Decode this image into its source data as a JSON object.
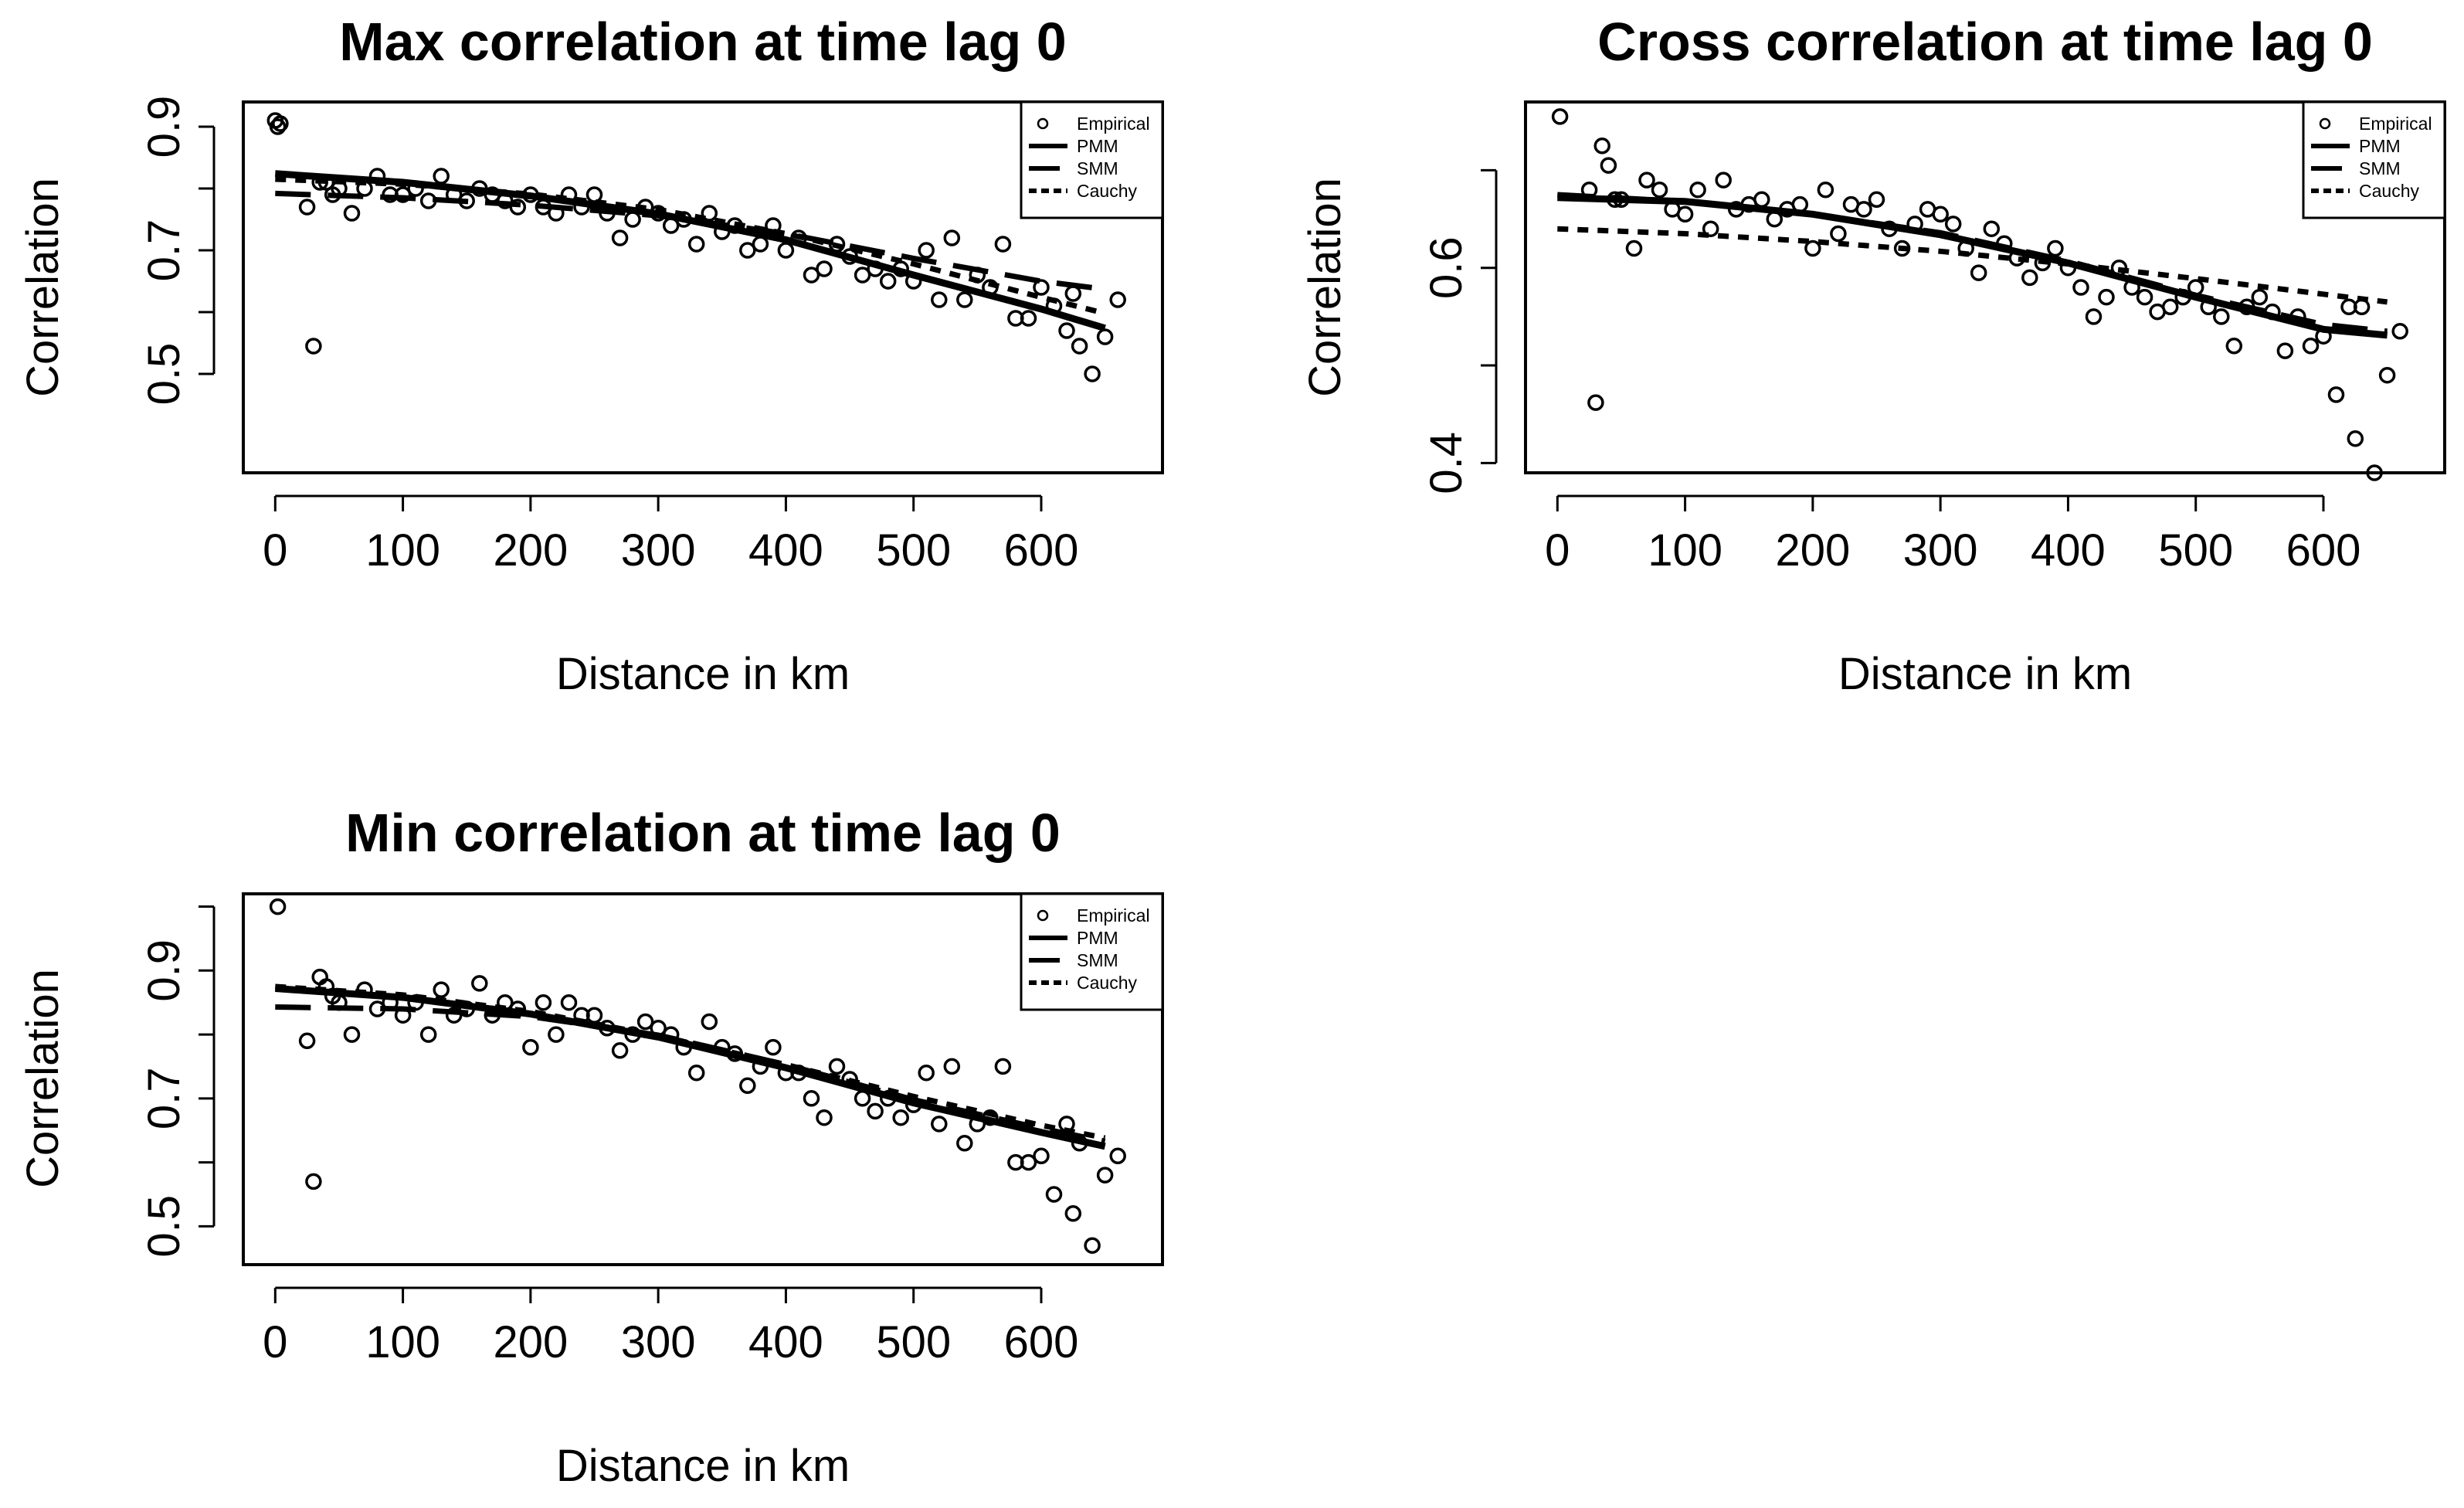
{
  "chart_data": [
    {
      "type": "scatter",
      "title": "Max correlation at time lag 0",
      "xlabel": "Distance in km",
      "ylabel": "Correlation",
      "xlim": [
        -25,
        695
      ],
      "ylim": [
        0.34,
        0.94
      ],
      "xticks": [
        0,
        100,
        200,
        300,
        400,
        500,
        600
      ],
      "xtick_labels": [
        "0",
        "100",
        "200",
        "300",
        "400",
        "500",
        "600"
      ],
      "yticks": [
        0.5,
        0.6,
        0.7,
        0.8,
        0.9
      ],
      "ytick_labels": [
        "0.5",
        "",
        "0.7",
        "",
        "0.9"
      ],
      "legend": {
        "position": "top-right",
        "entries": [
          "Empirical",
          "PMM",
          "SMM",
          "Cauchy"
        ]
      },
      "series": [
        {
          "name": "Empirical",
          "style": "points",
          "x": [
            0,
            2,
            4,
            25,
            30,
            35,
            40,
            45,
            50,
            60,
            70,
            80,
            90,
            100,
            110,
            120,
            130,
            140,
            150,
            160,
            170,
            180,
            190,
            200,
            210,
            220,
            230,
            240,
            250,
            260,
            270,
            280,
            290,
            300,
            310,
            320,
            330,
            340,
            350,
            360,
            370,
            380,
            390,
            400,
            410,
            420,
            430,
            440,
            450,
            460,
            470,
            480,
            490,
            500,
            510,
            520,
            530,
            540,
            550,
            560,
            570,
            580,
            590,
            600,
            610,
            620,
            625,
            630,
            640,
            650,
            660
          ],
          "y": [
            0.91,
            0.9,
            0.905,
            0.77,
            0.545,
            0.81,
            0.81,
            0.79,
            0.8,
            0.76,
            0.8,
            0.82,
            0.79,
            0.79,
            0.8,
            0.78,
            0.82,
            0.79,
            0.78,
            0.8,
            0.79,
            0.78,
            0.77,
            0.79,
            0.77,
            0.76,
            0.79,
            0.77,
            0.79,
            0.76,
            0.72,
            0.75,
            0.77,
            0.76,
            0.74,
            0.75,
            0.71,
            0.76,
            0.73,
            0.74,
            0.7,
            0.71,
            0.74,
            0.7,
            0.72,
            0.66,
            0.67,
            0.71,
            0.69,
            0.66,
            0.67,
            0.65,
            0.67,
            0.65,
            0.7,
            0.62,
            0.72,
            0.62,
            0.66,
            0.64,
            0.71,
            0.59,
            0.59,
            0.64,
            0.61,
            0.57,
            0.63,
            0.545,
            0.5,
            0.56,
            0.62
          ]
        },
        {
          "name": "PMM",
          "style": "solid",
          "x": [
            0,
            100,
            200,
            300,
            400,
            500,
            600,
            650
          ],
          "y": [
            0.824,
            0.81,
            0.788,
            0.759,
            0.717,
            0.66,
            0.605,
            0.574
          ]
        },
        {
          "name": "SMM",
          "style": "longdash",
          "x": [
            0,
            100,
            200,
            300,
            400,
            500,
            600,
            650
          ],
          "y": [
            0.792,
            0.785,
            0.773,
            0.756,
            0.727,
            0.687,
            0.65,
            0.637
          ]
        },
        {
          "name": "Cauchy",
          "style": "dashed",
          "x": [
            0,
            100,
            200,
            300,
            400,
            500,
            600,
            650
          ],
          "y": [
            0.815,
            0.807,
            0.791,
            0.766,
            0.727,
            0.678,
            0.624,
            0.598
          ]
        }
      ]
    },
    {
      "type": "scatter",
      "title": "Cross correlation at time lag 0",
      "xlabel": "Distance in km",
      "ylabel": "Correlation",
      "xlim": [
        -25,
        695
      ],
      "ylim": [
        0.39,
        0.77
      ],
      "xticks": [
        0,
        100,
        200,
        300,
        400,
        500,
        600
      ],
      "xtick_labels": [
        "0",
        "100",
        "200",
        "300",
        "400",
        "500",
        "600"
      ],
      "yticks": [
        0.4,
        0.5,
        0.6,
        0.7
      ],
      "ytick_labels": [
        "0.4",
        "",
        "0.6",
        ""
      ],
      "legend": {
        "position": "top-right",
        "entries": [
          "Empirical",
          "PMM",
          "SMM",
          "Cauchy"
        ]
      },
      "series": [
        {
          "name": "Empirical",
          "style": "points",
          "x": [
            2,
            25,
            30,
            35,
            40,
            45,
            50,
            60,
            70,
            80,
            90,
            100,
            110,
            120,
            130,
            140,
            150,
            160,
            170,
            180,
            190,
            200,
            210,
            220,
            230,
            240,
            250,
            260,
            270,
            280,
            290,
            300,
            310,
            320,
            330,
            340,
            350,
            360,
            370,
            380,
            390,
            400,
            410,
            420,
            430,
            440,
            450,
            460,
            470,
            480,
            490,
            500,
            510,
            520,
            530,
            540,
            550,
            560,
            570,
            580,
            590,
            600,
            610,
            620,
            625,
            630,
            640,
            650,
            660
          ],
          "y": [
            0.755,
            0.68,
            0.462,
            0.725,
            0.705,
            0.67,
            0.67,
            0.62,
            0.69,
            0.68,
            0.66,
            0.655,
            0.68,
            0.64,
            0.69,
            0.66,
            0.665,
            0.67,
            0.65,
            0.66,
            0.665,
            0.62,
            0.68,
            0.635,
            0.665,
            0.66,
            0.67,
            0.64,
            0.62,
            0.645,
            0.66,
            0.655,
            0.645,
            0.62,
            0.595,
            0.64,
            0.625,
            0.61,
            0.59,
            0.605,
            0.62,
            0.6,
            0.58,
            0.55,
            0.57,
            0.6,
            0.58,
            0.57,
            0.555,
            0.56,
            0.57,
            0.58,
            0.56,
            0.55,
            0.52,
            0.56,
            0.57,
            0.555,
            0.515,
            0.55,
            0.52,
            0.53,
            0.47,
            0.56,
            0.425,
            0.56,
            0.39,
            0.49,
            0.535
          ]
        },
        {
          "name": "PMM",
          "style": "solid",
          "x": [
            0,
            100,
            200,
            300,
            400,
            500,
            600,
            650
          ],
          "y": [
            0.672,
            0.668,
            0.655,
            0.634,
            0.605,
            0.57,
            0.537,
            0.531
          ]
        },
        {
          "name": "SMM",
          "style": "longdash",
          "x": [
            0,
            100,
            200,
            300,
            400,
            500,
            600,
            650
          ],
          "y": [
            0.675,
            0.668,
            0.655,
            0.636,
            0.607,
            0.572,
            0.542,
            0.535
          ]
        },
        {
          "name": "Cauchy",
          "style": "dashed",
          "x": [
            0,
            100,
            200,
            300,
            400,
            500,
            600,
            650
          ],
          "y": [
            0.64,
            0.635,
            0.627,
            0.617,
            0.604,
            0.589,
            0.573,
            0.565
          ]
        }
      ]
    },
    {
      "type": "scatter",
      "title": "Min correlation at time lag 0",
      "xlabel": "Distance in km",
      "ylabel": "Correlation",
      "xlim": [
        -25,
        695
      ],
      "ylim": [
        0.44,
        1.02
      ],
      "xticks": [
        0,
        100,
        200,
        300,
        400,
        500,
        600
      ],
      "xtick_labels": [
        "0",
        "100",
        "200",
        "300",
        "400",
        "500",
        "600"
      ],
      "yticks": [
        0.5,
        0.6,
        0.7,
        0.8,
        0.9,
        1.0
      ],
      "ytick_labels": [
        "0.5",
        "",
        "0.7",
        "",
        "0.9",
        ""
      ],
      "legend": {
        "position": "top-right",
        "entries": [
          "Empirical",
          "PMM",
          "SMM",
          "Cauchy"
        ]
      },
      "series": [
        {
          "name": "Empirical",
          "style": "points",
          "x": [
            2,
            25,
            30,
            35,
            40,
            45,
            50,
            60,
            70,
            80,
            90,
            100,
            110,
            120,
            130,
            140,
            150,
            160,
            170,
            180,
            190,
            200,
            210,
            220,
            230,
            240,
            250,
            260,
            270,
            280,
            290,
            300,
            310,
            320,
            330,
            340,
            350,
            360,
            370,
            380,
            390,
            400,
            410,
            420,
            430,
            440,
            450,
            460,
            470,
            480,
            490,
            500,
            510,
            520,
            530,
            540,
            550,
            560,
            570,
            580,
            590,
            600,
            610,
            620,
            625,
            630,
            640,
            650,
            660
          ],
          "y": [
            1.0,
            0.79,
            0.57,
            0.89,
            0.875,
            0.86,
            0.85,
            0.8,
            0.87,
            0.84,
            0.85,
            0.83,
            0.85,
            0.8,
            0.87,
            0.83,
            0.84,
            0.88,
            0.83,
            0.85,
            0.84,
            0.78,
            0.85,
            0.8,
            0.85,
            0.83,
            0.83,
            0.81,
            0.775,
            0.8,
            0.82,
            0.81,
            0.8,
            0.78,
            0.74,
            0.82,
            0.78,
            0.77,
            0.72,
            0.75,
            0.78,
            0.74,
            0.74,
            0.7,
            0.67,
            0.75,
            0.73,
            0.7,
            0.68,
            0.7,
            0.67,
            0.69,
            0.74,
            0.66,
            0.75,
            0.63,
            0.66,
            0.67,
            0.75,
            0.6,
            0.6,
            0.61,
            0.55,
            0.66,
            0.52,
            0.63,
            0.47,
            0.58,
            0.61
          ]
        },
        {
          "name": "PMM",
          "style": "solid",
          "x": [
            0,
            100,
            200,
            300,
            400,
            500,
            600,
            650
          ],
          "y": [
            0.872,
            0.858,
            0.832,
            0.796,
            0.748,
            0.693,
            0.647,
            0.625
          ]
        },
        {
          "name": "SMM",
          "style": "longdash",
          "x": [
            0,
            100,
            200,
            300,
            400,
            500,
            600,
            650
          ],
          "y": [
            0.843,
            0.84,
            0.828,
            0.799,
            0.753,
            0.698,
            0.653,
            0.633
          ]
        },
        {
          "name": "Cauchy",
          "style": "dashed",
          "x": [
            0,
            100,
            200,
            300,
            400,
            500,
            600,
            650
          ],
          "y": [
            0.875,
            0.862,
            0.836,
            0.798,
            0.753,
            0.703,
            0.658,
            0.638
          ]
        }
      ]
    }
  ]
}
